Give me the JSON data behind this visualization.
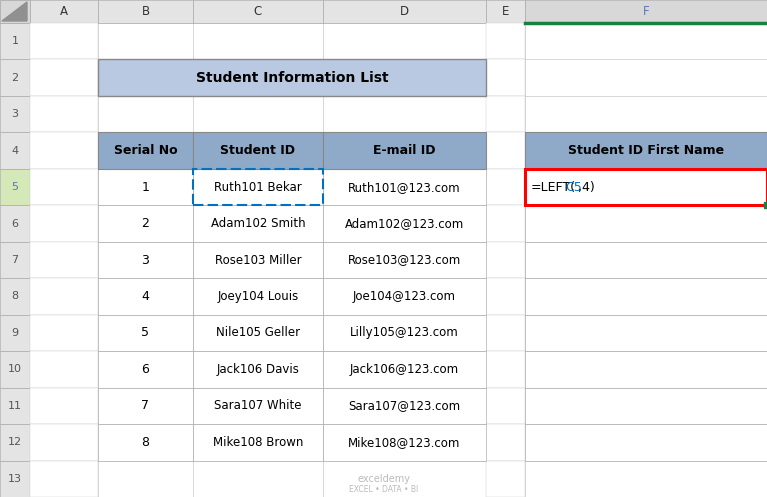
{
  "title": "Student Information List",
  "title_bg": "#b8c9e1",
  "header_bg": "#8eaac8",
  "cell_bg": "#ffffff",
  "row_header_bg": "#e4e4e4",
  "col_header_bg": "#e4e4e4",
  "col_header_selected_bg": "#d4e8b8",
  "row_header_selected_bg": "#d4e8b8",
  "col_labels": [
    "A",
    "B",
    "C",
    "D",
    "E",
    "F"
  ],
  "row_labels": [
    "1",
    "2",
    "3",
    "4",
    "5",
    "6",
    "7",
    "8",
    "9",
    "10",
    "11",
    "12",
    "13"
  ],
  "serial_nos": [
    "1",
    "2",
    "3",
    "4",
    "5",
    "6",
    "7",
    "8"
  ],
  "student_ids": [
    "Ruth101 Bekar",
    "Adam102 Smith",
    "Rose103 Miller",
    "Joey104 Louis",
    "Nile105 Geller",
    "Jack106 Davis",
    "Sara107 White",
    "Mike108 Brown"
  ],
  "emails": [
    "Ruth101@123.com",
    "Adam102@123.com",
    "Rose103@123.com",
    "Joe104@123.com",
    "Lilly105@123.com",
    "Jack106@123.com",
    "Sara107@123.com",
    "Mike108@123.com"
  ],
  "right_header": "Student ID First Name",
  "red_border_color": "#ff0000",
  "green_border_color": "#1a8040",
  "blue_ref_color": "#0070c0",
  "selected_label_color": "#5b7ab0",
  "watermark_line1": "exceldemy",
  "watermark_line2": "EXCEL • DATA • BI",
  "fig_bg": "#f2f2f2",
  "grid_line_color": "#c8c8c8",
  "border_color": "#a0a0a0"
}
